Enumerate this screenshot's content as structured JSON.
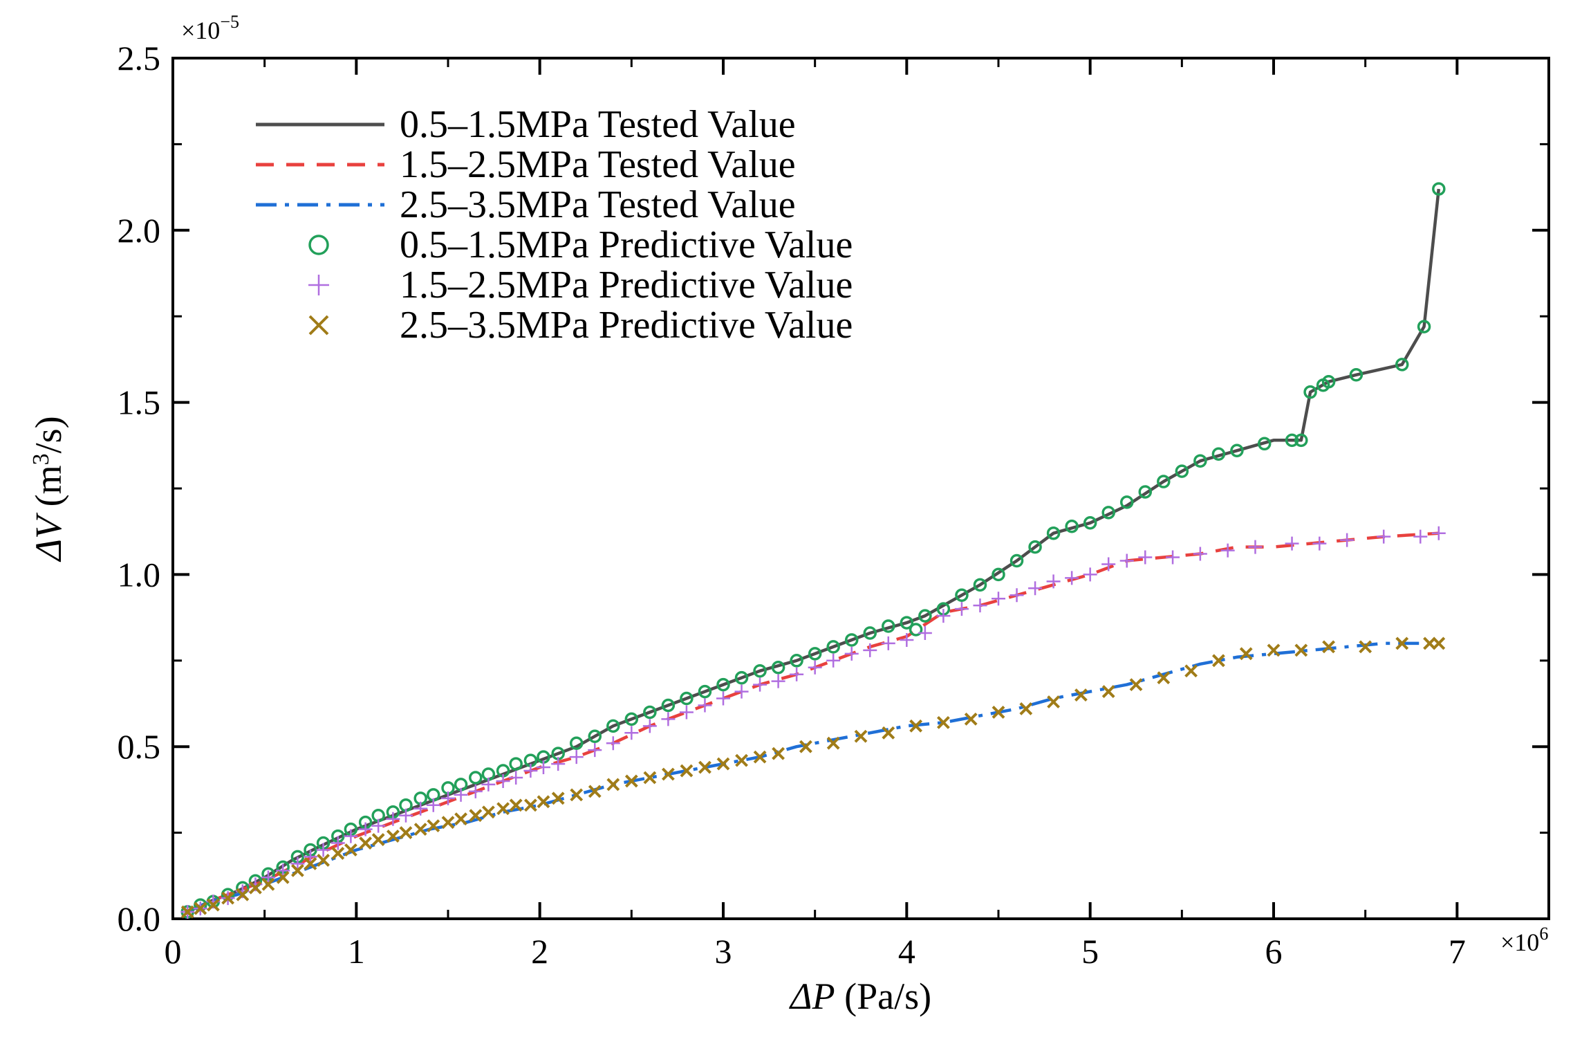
{
  "chart_data": {
    "type": "line",
    "xlabel_symbol": "ΔP",
    "xlabel_unit": " (Pa/s)",
    "ylabel_symbol": "ΔV",
    "ylabel_unit_pre": " (m",
    "ylabel_unit_sup": "3",
    "ylabel_unit_post": "/s)",
    "x_multiplier_base": "×10",
    "x_multiplier_exp": "6",
    "y_multiplier_base": "×10",
    "y_multiplier_exp": "−5",
    "xlim": [
      0,
      7.5
    ],
    "ylim": [
      0,
      2.5
    ],
    "x_ticks": [
      0,
      1,
      2,
      3,
      4,
      5,
      6,
      7
    ],
    "x_tick_labels": [
      "0",
      "1",
      "2",
      "3",
      "4",
      "5",
      "6",
      "7"
    ],
    "y_ticks": [
      0,
      0.5,
      1.0,
      1.5,
      2.0,
      2.5
    ],
    "y_tick_labels": [
      "0.0",
      "0.5",
      "1.0",
      "1.5",
      "2.0",
      "2.5"
    ],
    "legend_position": "top-left",
    "series": [
      {
        "name": "0.5–1.5MPa Tested Value",
        "kind": "line",
        "style": "solid",
        "color": "#4d4d4d",
        "x": [
          0.08,
          0.2,
          0.35,
          0.5,
          0.65,
          0.8,
          1.0,
          1.2,
          1.4,
          1.6,
          1.8,
          2.0,
          2.2,
          2.4,
          2.6,
          2.8,
          3.0,
          3.2,
          3.4,
          3.6,
          3.8,
          4.0,
          4.1,
          4.2,
          4.4,
          4.6,
          4.8,
          5.0,
          5.2,
          5.4,
          5.6,
          5.8,
          6.0,
          6.15,
          6.2,
          6.3,
          6.45,
          6.7,
          6.82,
          6.9
        ],
        "y": [
          0.02,
          0.05,
          0.08,
          0.12,
          0.17,
          0.21,
          0.26,
          0.3,
          0.34,
          0.38,
          0.42,
          0.46,
          0.5,
          0.56,
          0.6,
          0.64,
          0.68,
          0.72,
          0.75,
          0.79,
          0.83,
          0.86,
          0.88,
          0.91,
          0.97,
          1.04,
          1.12,
          1.15,
          1.2,
          1.27,
          1.33,
          1.36,
          1.39,
          1.39,
          1.53,
          1.56,
          1.58,
          1.61,
          1.72,
          2.12
        ]
      },
      {
        "name": "1.5–2.5MPa Tested Value",
        "kind": "line",
        "style": "dash",
        "color": "#e8413e",
        "x": [
          0.08,
          0.2,
          0.35,
          0.5,
          0.65,
          0.8,
          1.0,
          1.2,
          1.4,
          1.6,
          1.8,
          2.0,
          2.2,
          2.4,
          2.6,
          2.8,
          3.0,
          3.2,
          3.4,
          3.6,
          3.8,
          4.0,
          4.2,
          4.4,
          4.6,
          4.8,
          5.0,
          5.2,
          5.4,
          5.6,
          5.8,
          6.0,
          6.2,
          6.4,
          6.6,
          6.9
        ],
        "y": [
          0.02,
          0.05,
          0.08,
          0.11,
          0.15,
          0.19,
          0.24,
          0.28,
          0.32,
          0.36,
          0.4,
          0.44,
          0.47,
          0.51,
          0.56,
          0.6,
          0.64,
          0.68,
          0.71,
          0.75,
          0.79,
          0.82,
          0.89,
          0.91,
          0.94,
          0.97,
          1.0,
          1.04,
          1.05,
          1.06,
          1.08,
          1.08,
          1.09,
          1.1,
          1.11,
          1.12
        ]
      },
      {
        "name": "2.5–3.5MPa Tested Value",
        "kind": "line",
        "style": "dashdot",
        "color": "#1f6fd6",
        "x": [
          0.08,
          0.2,
          0.35,
          0.5,
          0.65,
          0.8,
          1.0,
          1.2,
          1.4,
          1.6,
          1.8,
          2.0,
          2.2,
          2.4,
          2.6,
          2.8,
          3.0,
          3.2,
          3.4,
          3.6,
          3.8,
          4.0,
          4.2,
          4.4,
          4.6,
          4.8,
          5.0,
          5.2,
          5.4,
          5.6,
          5.8,
          6.0,
          6.2,
          6.4,
          6.6,
          6.9
        ],
        "y": [
          0.02,
          0.05,
          0.07,
          0.1,
          0.13,
          0.16,
          0.2,
          0.23,
          0.26,
          0.28,
          0.31,
          0.33,
          0.36,
          0.39,
          0.41,
          0.43,
          0.45,
          0.47,
          0.5,
          0.52,
          0.54,
          0.56,
          0.57,
          0.59,
          0.61,
          0.64,
          0.66,
          0.68,
          0.71,
          0.74,
          0.76,
          0.77,
          0.78,
          0.79,
          0.8,
          0.8
        ]
      },
      {
        "name": "0.5–1.5MPa Predictive Value",
        "kind": "marker",
        "marker": "circle",
        "color": "#22a05a",
        "x": [
          0.08,
          0.15,
          0.22,
          0.3,
          0.38,
          0.45,
          0.52,
          0.6,
          0.68,
          0.75,
          0.82,
          0.9,
          0.97,
          1.05,
          1.12,
          1.2,
          1.27,
          1.35,
          1.42,
          1.5,
          1.57,
          1.65,
          1.72,
          1.8,
          1.87,
          1.95,
          2.02,
          2.1,
          2.2,
          2.3,
          2.4,
          2.5,
          2.6,
          2.7,
          2.8,
          2.9,
          3.0,
          3.1,
          3.2,
          3.3,
          3.4,
          3.5,
          3.6,
          3.7,
          3.8,
          3.9,
          4.0,
          4.05,
          4.1,
          4.2,
          4.3,
          4.4,
          4.5,
          4.6,
          4.7,
          4.8,
          4.9,
          5.0,
          5.1,
          5.2,
          5.3,
          5.4,
          5.5,
          5.6,
          5.7,
          5.8,
          5.95,
          6.1,
          6.15,
          6.2,
          6.27,
          6.3,
          6.45,
          6.7,
          6.82,
          6.9
        ],
        "y": [
          0.02,
          0.04,
          0.05,
          0.07,
          0.09,
          0.11,
          0.13,
          0.15,
          0.18,
          0.2,
          0.22,
          0.24,
          0.26,
          0.28,
          0.3,
          0.31,
          0.33,
          0.35,
          0.36,
          0.38,
          0.39,
          0.41,
          0.42,
          0.43,
          0.45,
          0.46,
          0.47,
          0.48,
          0.51,
          0.53,
          0.56,
          0.58,
          0.6,
          0.62,
          0.64,
          0.66,
          0.68,
          0.7,
          0.72,
          0.73,
          0.75,
          0.77,
          0.79,
          0.81,
          0.83,
          0.85,
          0.86,
          0.84,
          0.88,
          0.9,
          0.94,
          0.97,
          1.0,
          1.04,
          1.08,
          1.12,
          1.14,
          1.15,
          1.18,
          1.21,
          1.24,
          1.27,
          1.3,
          1.33,
          1.35,
          1.36,
          1.38,
          1.39,
          1.39,
          1.53,
          1.55,
          1.56,
          1.58,
          1.61,
          1.72,
          2.12
        ]
      },
      {
        "name": "1.5–2.5MPa Predictive Value",
        "kind": "marker",
        "marker": "plus",
        "color": "#b06ee0",
        "x": [
          0.08,
          0.15,
          0.22,
          0.3,
          0.38,
          0.45,
          0.52,
          0.6,
          0.68,
          0.75,
          0.82,
          0.9,
          0.97,
          1.05,
          1.12,
          1.2,
          1.27,
          1.35,
          1.42,
          1.5,
          1.57,
          1.65,
          1.72,
          1.8,
          1.87,
          1.95,
          2.02,
          2.1,
          2.2,
          2.3,
          2.4,
          2.5,
          2.6,
          2.7,
          2.8,
          2.9,
          3.0,
          3.1,
          3.2,
          3.3,
          3.4,
          3.5,
          3.6,
          3.7,
          3.8,
          3.9,
          4.0,
          4.1,
          4.2,
          4.3,
          4.4,
          4.5,
          4.6,
          4.7,
          4.8,
          4.9,
          5.0,
          5.1,
          5.2,
          5.3,
          5.45,
          5.6,
          5.75,
          5.9,
          6.1,
          6.25,
          6.4,
          6.6,
          6.8,
          6.9
        ],
        "y": [
          0.02,
          0.03,
          0.05,
          0.06,
          0.08,
          0.1,
          0.12,
          0.14,
          0.16,
          0.18,
          0.2,
          0.22,
          0.24,
          0.26,
          0.27,
          0.29,
          0.3,
          0.32,
          0.33,
          0.35,
          0.36,
          0.37,
          0.39,
          0.4,
          0.41,
          0.43,
          0.44,
          0.45,
          0.47,
          0.49,
          0.51,
          0.54,
          0.56,
          0.58,
          0.6,
          0.62,
          0.64,
          0.66,
          0.68,
          0.69,
          0.71,
          0.73,
          0.75,
          0.77,
          0.78,
          0.8,
          0.81,
          0.83,
          0.88,
          0.9,
          0.91,
          0.93,
          0.94,
          0.96,
          0.98,
          0.99,
          1.0,
          1.03,
          1.04,
          1.05,
          1.05,
          1.06,
          1.07,
          1.08,
          1.09,
          1.09,
          1.1,
          1.11,
          1.11,
          1.12
        ]
      },
      {
        "name": "2.5–3.5MPa Predictive Value",
        "kind": "marker",
        "marker": "cross",
        "color": "#a07c18",
        "x": [
          0.08,
          0.15,
          0.22,
          0.3,
          0.38,
          0.45,
          0.52,
          0.6,
          0.68,
          0.75,
          0.82,
          0.9,
          0.97,
          1.05,
          1.12,
          1.2,
          1.27,
          1.35,
          1.42,
          1.5,
          1.57,
          1.65,
          1.72,
          1.8,
          1.87,
          1.95,
          2.02,
          2.1,
          2.2,
          2.3,
          2.4,
          2.5,
          2.6,
          2.7,
          2.8,
          2.9,
          3.0,
          3.1,
          3.2,
          3.3,
          3.45,
          3.6,
          3.75,
          3.9,
          4.05,
          4.2,
          4.35,
          4.5,
          4.65,
          4.8,
          4.95,
          5.1,
          5.25,
          5.4,
          5.55,
          5.7,
          5.85,
          6.0,
          6.15,
          6.3,
          6.5,
          6.7,
          6.85,
          6.9
        ],
        "y": [
          0.02,
          0.03,
          0.04,
          0.06,
          0.07,
          0.09,
          0.1,
          0.12,
          0.14,
          0.16,
          0.17,
          0.19,
          0.2,
          0.22,
          0.23,
          0.24,
          0.25,
          0.26,
          0.27,
          0.28,
          0.29,
          0.3,
          0.31,
          0.32,
          0.33,
          0.33,
          0.34,
          0.35,
          0.36,
          0.37,
          0.39,
          0.4,
          0.41,
          0.42,
          0.43,
          0.44,
          0.45,
          0.46,
          0.47,
          0.48,
          0.5,
          0.51,
          0.53,
          0.54,
          0.56,
          0.57,
          0.58,
          0.6,
          0.61,
          0.63,
          0.65,
          0.66,
          0.68,
          0.7,
          0.72,
          0.75,
          0.77,
          0.78,
          0.78,
          0.79,
          0.79,
          0.8,
          0.8,
          0.8
        ]
      }
    ]
  }
}
